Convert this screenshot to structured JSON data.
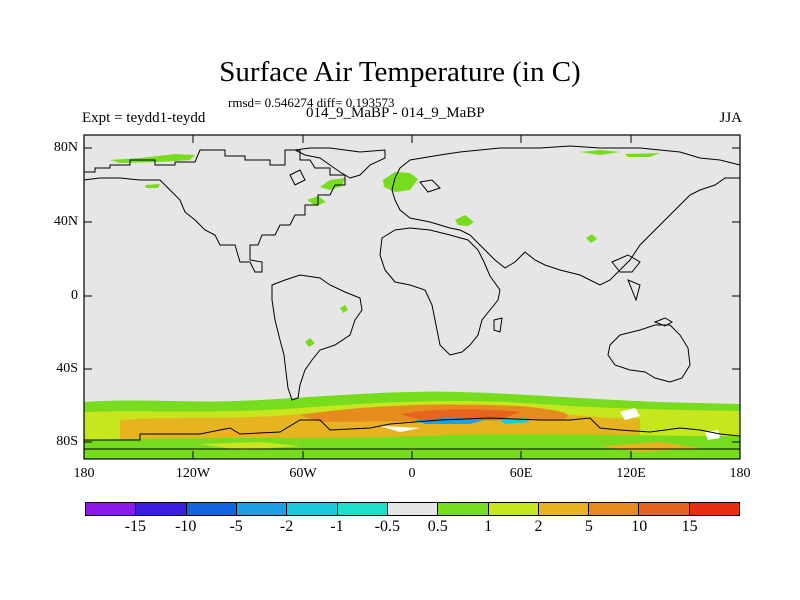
{
  "title": "Surface Air Temperature (in C)",
  "stats": "rmsd= 0.546274 diff= 0.193573",
  "experiment": "Expt = teydd1-teydd",
  "experiment_name": "014_9_MaBP - 014_9_MaBP",
  "season": "JJA",
  "map": {
    "lat_ticks": [
      "80N",
      "40N",
      "0",
      "40S",
      "80S"
    ],
    "lon_ticks": [
      "180",
      "120W",
      "60W",
      "0",
      "60E",
      "120E",
      "180"
    ],
    "background_color": "#e6e6e6",
    "coastline_color": "#000000"
  },
  "colorbar": {
    "labels": [
      "-15",
      "-10",
      "-5",
      "-2",
      "-1",
      "-0.5",
      "0.5",
      "1",
      "2",
      "5",
      "10",
      "15"
    ],
    "colors": [
      "#8c1aea",
      "#3c1ee0",
      "#1464e0",
      "#1ea0e6",
      "#1ec8dc",
      "#1ee0c8",
      "#e6e6e6",
      "#78dc1e",
      "#c8e61e",
      "#e6b41e",
      "#e68c1e",
      "#e6641e",
      "#e62d14"
    ]
  }
}
